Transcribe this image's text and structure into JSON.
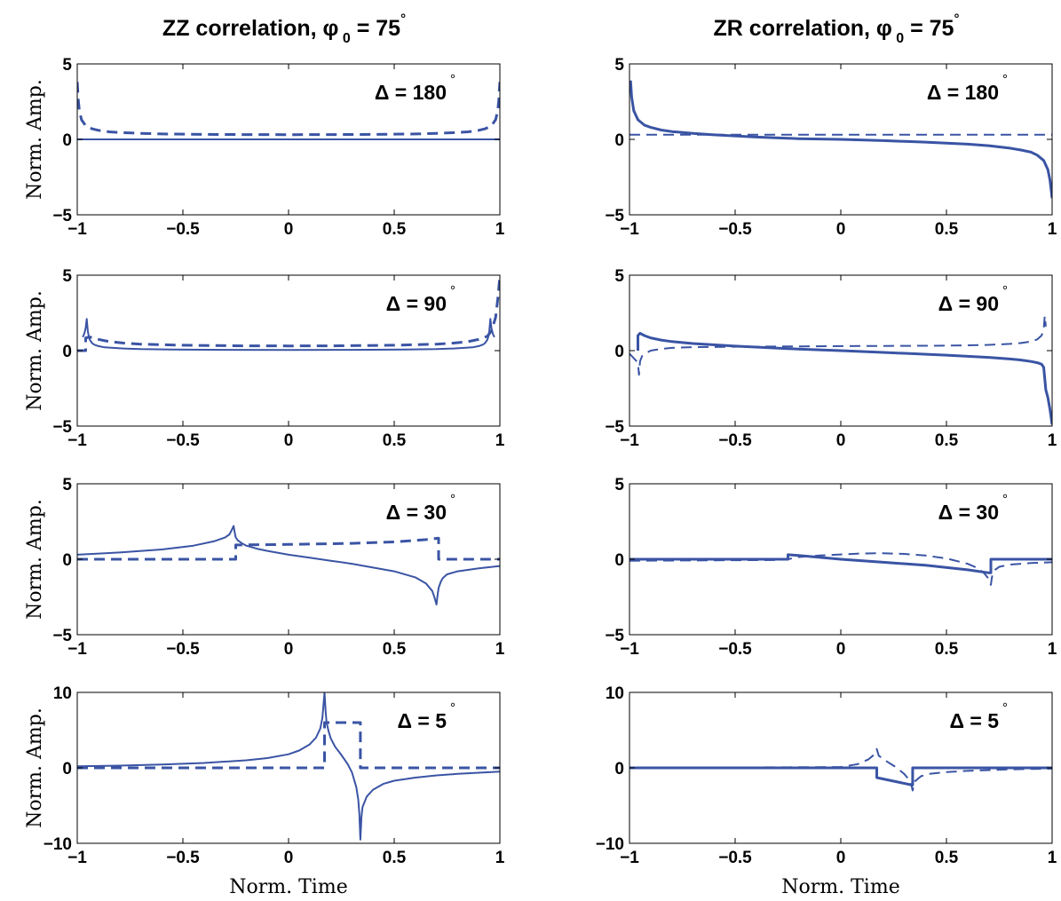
{
  "columns": [
    {
      "title": "ZZ correlation, ",
      "phi": "φ",
      "sub": "0",
      "eq": " = 75",
      "deg": "°"
    },
    {
      "title": "ZR correlation, ",
      "phi": "φ",
      "sub": "0",
      "eq": " = 75",
      "deg": "°"
    }
  ],
  "xlabel": "Norm. Time",
  "ylabel": "Norm. Amp.",
  "colors": {
    "line": "#3a54a4"
  },
  "chart_data": [
    {
      "type": "line",
      "panel": "ZZ Δ=180",
      "annotation": "Δ = 180",
      "annotation_deg": "°",
      "xlim": [
        -1,
        1
      ],
      "ylim": [
        -5,
        5
      ],
      "xticks": [
        "-1",
        "-0.5",
        "0",
        "0.5",
        "1"
      ],
      "yticks": [
        "-5",
        "0",
        "5"
      ],
      "series": [
        {
          "style": "solid",
          "width": 2,
          "x": [
            -1,
            1
          ],
          "y": [
            0,
            0
          ]
        },
        {
          "style": "dashed",
          "width": 3,
          "x": [
            -1,
            -0.995,
            -0.99,
            -0.98,
            -0.96,
            -0.93,
            -0.9,
            -0.85,
            -0.8,
            -0.7,
            -0.6,
            -0.4,
            -0.2,
            0,
            0.2,
            0.4,
            0.6,
            0.7,
            0.8,
            0.85,
            0.9,
            0.93,
            0.96,
            0.98,
            0.99,
            0.995,
            1
          ],
          "y": [
            3.8,
            2.6,
            1.9,
            1.3,
            0.9,
            0.7,
            0.6,
            0.5,
            0.45,
            0.4,
            0.36,
            0.33,
            0.32,
            0.31,
            0.32,
            0.33,
            0.36,
            0.4,
            0.45,
            0.5,
            0.6,
            0.7,
            0.9,
            1.3,
            1.9,
            2.6,
            3.8
          ]
        }
      ]
    },
    {
      "type": "line",
      "panel": "ZR Δ=180",
      "annotation": "Δ = 180",
      "annotation_deg": "°",
      "xlim": [
        -1,
        1
      ],
      "ylim": [
        -5,
        5
      ],
      "xticks": [
        "-1",
        "-0.5",
        "0",
        "0.5",
        "1"
      ],
      "yticks": [
        "-5",
        "0",
        "5"
      ],
      "series": [
        {
          "style": "solid",
          "width": 3,
          "x": [
            -0.995,
            -0.99,
            -0.98,
            -0.96,
            -0.93,
            -0.9,
            -0.85,
            -0.8,
            -0.7,
            -0.6,
            -0.4,
            -0.2,
            0,
            0.2,
            0.4,
            0.6,
            0.7,
            0.8,
            0.85,
            0.9,
            0.93,
            0.96,
            0.98,
            0.99,
            0.995,
            1
          ],
          "y": [
            3.9,
            2.8,
            1.9,
            1.3,
            0.95,
            0.8,
            0.62,
            0.52,
            0.4,
            0.3,
            0.15,
            0.05,
            0,
            -0.08,
            -0.18,
            -0.32,
            -0.42,
            -0.58,
            -0.7,
            -0.85,
            -1.05,
            -1.4,
            -2.0,
            -2.7,
            -3.3,
            -3.9
          ]
        },
        {
          "style": "dashed",
          "width": 2,
          "x": [
            -1,
            1
          ],
          "y": [
            0.31,
            0.31
          ]
        }
      ]
    },
    {
      "type": "line",
      "panel": "ZZ Δ=90",
      "annotation": "Δ = 90",
      "annotation_deg": "°",
      "xlim": [
        -1,
        1
      ],
      "ylim": [
        -5,
        5
      ],
      "xticks": [
        "-1",
        "-0.5",
        "0",
        "0.5",
        "1"
      ],
      "yticks": [
        "-5",
        "0",
        "5"
      ],
      "series": [
        {
          "style": "solid",
          "width": 2,
          "x": [
            -0.975,
            -0.97,
            -0.965,
            -0.96,
            -0.955,
            -0.95,
            -0.945,
            -0.94,
            -0.93,
            -0.92,
            -0.9,
            -0.87,
            -0.83,
            -0.78,
            -0.7,
            -0.55,
            -0.3,
            0,
            0.3,
            0.55,
            0.7,
            0.78,
            0.83,
            0.87,
            0.9,
            0.92,
            0.93,
            0.94,
            0.945,
            0.95,
            0.955,
            0.96,
            0.965,
            0.97,
            0.975
          ],
          "y": [
            0.9,
            1.0,
            1.2,
            1.5,
            2.1,
            1.3,
            0.9,
            0.7,
            0.5,
            0.4,
            0.3,
            0.22,
            0.18,
            0.14,
            0.1,
            0.07,
            0.05,
            0.04,
            0.05,
            0.07,
            0.1,
            0.14,
            0.18,
            0.22,
            0.3,
            0.4,
            0.5,
            0.7,
            0.9,
            1.3,
            2.1,
            1.5,
            1.2,
            1.0,
            0.9
          ]
        },
        {
          "style": "dashed",
          "width": 3,
          "x": [
            -1,
            -0.96,
            -0.96,
            -0.94,
            -0.9,
            -0.85,
            -0.78,
            -0.7,
            -0.5,
            -0.2,
            0,
            0.2,
            0.5,
            0.7,
            0.78,
            0.85,
            0.9,
            0.94,
            0.96,
            0.98,
            0.99,
            1.0
          ],
          "y": [
            0,
            0,
            0.85,
            0.9,
            0.75,
            0.6,
            0.5,
            0.43,
            0.36,
            0.32,
            0.31,
            0.32,
            0.36,
            0.43,
            0.5,
            0.6,
            0.75,
            0.95,
            1.3,
            2.2,
            3.4,
            4.9
          ]
        }
      ]
    },
    {
      "type": "line",
      "panel": "ZR Δ=90",
      "annotation": "Δ = 90",
      "annotation_deg": "°",
      "xlim": [
        -1,
        1
      ],
      "ylim": [
        -5,
        5
      ],
      "xticks": [
        "-1",
        "-0.5",
        "0",
        "0.5",
        "1"
      ],
      "yticks": [
        "-5",
        "0",
        "5"
      ],
      "series": [
        {
          "style": "solid",
          "width": 3,
          "x": [
            -0.96,
            -0.96,
            -0.95,
            -0.93,
            -0.9,
            -0.85,
            -0.8,
            -0.7,
            -0.5,
            -0.2,
            0,
            0.2,
            0.5,
            0.7,
            0.8,
            0.85,
            0.9,
            0.93,
            0.95,
            0.96,
            0.97,
            0.98,
            0.99,
            1.0
          ],
          "y": [
            0,
            1.0,
            1.15,
            1.0,
            0.85,
            0.7,
            0.6,
            0.47,
            0.3,
            0.1,
            0,
            -0.12,
            -0.3,
            -0.45,
            -0.55,
            -0.62,
            -0.72,
            -0.8,
            -0.9,
            -1.1,
            -2.6,
            -3.1,
            -3.9,
            -4.9
          ]
        },
        {
          "style": "dashed",
          "width": 2,
          "x": [
            -1,
            -0.98,
            -0.96,
            -0.955,
            -0.95,
            -0.94,
            -0.92,
            -0.9,
            -0.85,
            -0.8,
            -0.7,
            -0.5,
            -0.2,
            0,
            0.2,
            0.5,
            0.7,
            0.8,
            0.85,
            0.9,
            0.93,
            0.95,
            0.96,
            0.965,
            0.97
          ],
          "y": [
            -0.2,
            -0.5,
            -0.8,
            -1.6,
            -0.7,
            -0.35,
            -0.15,
            0,
            0.12,
            0.18,
            0.23,
            0.26,
            0.28,
            0.3,
            0.31,
            0.33,
            0.38,
            0.45,
            0.5,
            0.6,
            0.75,
            1.0,
            1.4,
            2.3,
            1.6
          ]
        }
      ]
    },
    {
      "type": "line",
      "panel": "ZZ Δ=30",
      "annotation": "Δ = 30",
      "annotation_deg": "°",
      "xlim": [
        -1,
        1
      ],
      "ylim": [
        -5,
        5
      ],
      "xticks": [
        "-1",
        "-0.5",
        "0",
        "0.5",
        "1"
      ],
      "yticks": [
        "-5",
        "0",
        "5"
      ],
      "series": [
        {
          "style": "solid",
          "width": 2,
          "x": [
            -1,
            -0.8,
            -0.6,
            -0.45,
            -0.35,
            -0.3,
            -0.28,
            -0.27,
            -0.26,
            -0.255,
            -0.25,
            -0.24,
            -0.22,
            -0.2,
            -0.15,
            -0.1,
            0,
            0.1,
            0.2,
            0.3,
            0.4,
            0.5,
            0.6,
            0.65,
            0.68,
            0.69,
            0.7,
            0.705,
            0.71,
            0.72,
            0.73,
            0.75,
            0.8,
            0.9,
            1.0
          ],
          "y": [
            0.3,
            0.45,
            0.65,
            0.9,
            1.2,
            1.45,
            1.65,
            1.9,
            2.2,
            1.8,
            1.45,
            1.25,
            1.05,
            0.9,
            0.7,
            0.55,
            0.3,
            0.1,
            -0.1,
            -0.3,
            -0.55,
            -0.8,
            -1.2,
            -1.6,
            -2.1,
            -2.5,
            -3.0,
            -2.4,
            -1.9,
            -1.5,
            -1.25,
            -1.0,
            -0.8,
            -0.6,
            -0.45
          ]
        },
        {
          "style": "dashed",
          "width": 3,
          "x": [
            -1,
            -0.25,
            -0.25,
            0.0,
            0.3,
            0.5,
            0.65,
            0.71,
            0.71,
            1.0
          ],
          "y": [
            0,
            0,
            0.95,
            0.98,
            1.05,
            1.15,
            1.3,
            1.4,
            0,
            0
          ]
        }
      ]
    },
    {
      "type": "line",
      "panel": "ZR Δ=30",
      "annotation": "Δ = 30",
      "annotation_deg": "°",
      "xlim": [
        -1,
        1
      ],
      "ylim": [
        -5,
        5
      ],
      "xticks": [
        "-1",
        "-0.5",
        "0",
        "0.5",
        "1"
      ],
      "yticks": [
        "-5",
        "0",
        "5"
      ],
      "series": [
        {
          "style": "solid",
          "width": 3,
          "x": [
            -1,
            -0.25,
            -0.25,
            -0.2,
            0,
            0.2,
            0.4,
            0.6,
            0.7,
            0.71,
            0.71,
            1.0
          ],
          "y": [
            0,
            0,
            0.3,
            0.25,
            0.0,
            -0.2,
            -0.4,
            -0.7,
            -0.9,
            -0.9,
            0,
            0
          ]
        },
        {
          "style": "dashed",
          "width": 2,
          "x": [
            -1,
            -0.3,
            -0.25,
            -0.2,
            -0.1,
            0,
            0.1,
            0.2,
            0.3,
            0.4,
            0.5,
            0.6,
            0.65,
            0.68,
            0.7,
            0.71,
            0.715,
            0.72,
            0.73,
            0.75,
            0.8,
            0.9,
            1.0
          ],
          "y": [
            -0.1,
            -0.05,
            0,
            0.15,
            0.25,
            0.32,
            0.38,
            0.4,
            0.35,
            0.25,
            0.05,
            -0.3,
            -0.6,
            -0.95,
            -1.3,
            -1.7,
            -1.2,
            -0.9,
            -0.7,
            -0.5,
            -0.35,
            -0.25,
            -0.2
          ]
        }
      ]
    },
    {
      "type": "line",
      "panel": "ZZ Δ=5",
      "annotation": "Δ = 5",
      "annotation_deg": "°",
      "xlim": [
        -1,
        1
      ],
      "ylim": [
        -10,
        10
      ],
      "xticks": [
        "-1",
        "-0.5",
        "0",
        "0.5",
        "1"
      ],
      "yticks": [
        "-10",
        "0",
        "10"
      ],
      "series": [
        {
          "style": "solid",
          "width": 2,
          "x": [
            -1,
            -0.8,
            -0.6,
            -0.4,
            -0.2,
            -0.1,
            0,
            0.05,
            0.1,
            0.13,
            0.15,
            0.16,
            0.17,
            0.175,
            0.18,
            0.19,
            0.2,
            0.22,
            0.25,
            0.28,
            0.3,
            0.32,
            0.33,
            0.335,
            0.34,
            0.345,
            0.35,
            0.37,
            0.4,
            0.45,
            0.5,
            0.6,
            0.7,
            0.8,
            1.0
          ],
          "y": [
            0.2,
            0.3,
            0.45,
            0.65,
            1.0,
            1.3,
            1.8,
            2.3,
            3.1,
            4.0,
            5.2,
            6.6,
            10.0,
            7.6,
            6.0,
            4.8,
            3.9,
            2.8,
            1.7,
            0.5,
            -0.6,
            -2.5,
            -4.2,
            -6.0,
            -9.5,
            -6.5,
            -5.2,
            -3.8,
            -2.9,
            -2.1,
            -1.7,
            -1.3,
            -1.0,
            -0.8,
            -0.5
          ]
        },
        {
          "style": "dashed",
          "width": 3,
          "x": [
            -1,
            0.17,
            0.17,
            0.34,
            0.34,
            1.0
          ],
          "y": [
            0,
            0,
            6.0,
            6.0,
            0,
            0
          ]
        }
      ]
    },
    {
      "type": "line",
      "panel": "ZR Δ=5",
      "annotation": "Δ = 5",
      "annotation_deg": "°",
      "xlim": [
        -1,
        1
      ],
      "ylim": [
        -10,
        10
      ],
      "xticks": [
        "-1",
        "-0.5",
        "0",
        "0.5",
        "1"
      ],
      "yticks": [
        "-10",
        "0",
        "10"
      ],
      "series": [
        {
          "style": "solid",
          "width": 3,
          "x": [
            -1,
            0.17,
            0.17,
            0.34,
            0.34,
            1.0
          ],
          "y": [
            0,
            0,
            -1.3,
            -2.3,
            0,
            0
          ]
        },
        {
          "style": "dashed",
          "width": 2,
          "x": [
            -1,
            0.0,
            0.08,
            0.13,
            0.16,
            0.17,
            0.18,
            0.22,
            0.26,
            0.3,
            0.33,
            0.34,
            0.35,
            0.38,
            0.42,
            0.5,
            0.6,
            0.8,
            1.0
          ],
          "y": [
            0,
            0.1,
            0.5,
            1.1,
            1.8,
            2.5,
            1.6,
            0.8,
            0.1,
            -0.8,
            -1.8,
            -3.0,
            -1.8,
            -1.1,
            -0.8,
            -0.55,
            -0.4,
            -0.2,
            -0.1
          ]
        }
      ]
    }
  ]
}
